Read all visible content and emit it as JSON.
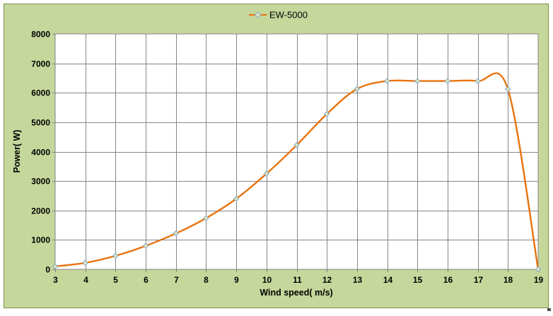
{
  "chart": {
    "legend_label": "EW-5000"
  },
  "chart_data": {
    "type": "line",
    "smooth": true,
    "title": "",
    "xlabel": "Wind speed( m/s)",
    "ylabel": "Power( W)",
    "x": [
      3,
      4,
      5,
      6,
      7,
      8,
      9,
      10,
      11,
      12,
      13,
      14,
      15,
      16,
      17,
      18,
      19
    ],
    "series": [
      {
        "name": "EW-5000",
        "values": [
          100,
          220,
          460,
          800,
          1220,
          1740,
          2400,
          3250,
          4220,
          5280,
          6130,
          6400,
          6400,
          6400,
          6400,
          6120,
          0
        ]
      }
    ],
    "xlim": [
      3,
      19
    ],
    "ylim": [
      0,
      8000
    ],
    "x_tick_step": 1,
    "y_tick_step": 1000,
    "grid": true,
    "legend_position": "top-center",
    "marker_shape": "diamond",
    "colors": {
      "chart_bg": "#C5D79B",
      "chart_border": "#7E9148",
      "plot_bg": "#FFFFFF",
      "grid": "#868686",
      "line": "#E8730E",
      "marker_fill": "#D7E4BC",
      "marker_stroke": "#8BA7C7",
      "text": "#000000"
    }
  }
}
